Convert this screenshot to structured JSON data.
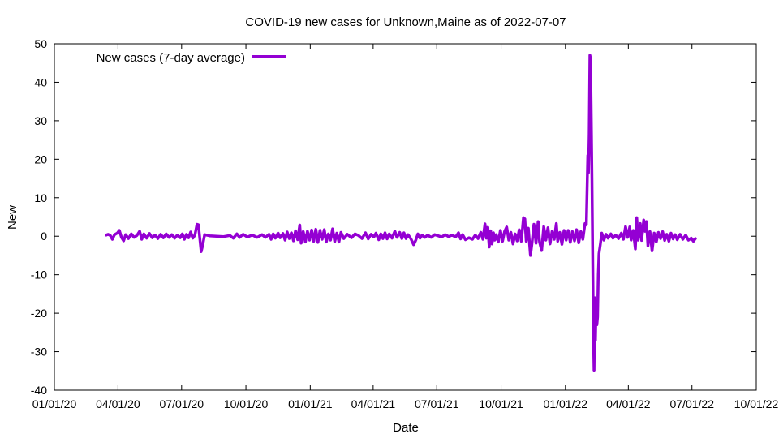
{
  "chart_data": {
    "type": "line",
    "title": "COVID-19 new cases for Unknown,Maine as of 2022-07-07",
    "xlabel": "Date",
    "ylabel": "New",
    "xlim": [
      "2020-01-01",
      "2022-10-01"
    ],
    "ylim": [
      -40,
      50
    ],
    "x_ticks": [
      "01/01/20",
      "04/01/20",
      "07/01/20",
      "10/01/20",
      "01/01/21",
      "04/01/21",
      "07/01/21",
      "10/01/21",
      "01/01/22",
      "04/01/22",
      "07/01/22",
      "10/01/22"
    ],
    "y_ticks": [
      "-40",
      "-30",
      "-20",
      "-10",
      "0",
      "10",
      "20",
      "30",
      "40",
      "50"
    ],
    "grid": false,
    "legend": {
      "position": "top-left"
    },
    "series": [
      {
        "name": "New cases (7-day average)",
        "color": "#9400d3",
        "points": [
          [
            "2020-03-15",
            0.3
          ],
          [
            "2020-03-18",
            0.5
          ],
          [
            "2020-03-21",
            0.2
          ],
          [
            "2020-03-24",
            -0.8
          ],
          [
            "2020-03-27",
            0.4
          ],
          [
            "2020-03-31",
            0.8
          ],
          [
            "2020-04-03",
            1.5
          ],
          [
            "2020-04-06",
            -0.3
          ],
          [
            "2020-04-09",
            -1.2
          ],
          [
            "2020-04-12",
            0.4
          ],
          [
            "2020-04-16",
            -0.6
          ],
          [
            "2020-04-20",
            0.6
          ],
          [
            "2020-04-24",
            -0.3
          ],
          [
            "2020-04-28",
            0.2
          ],
          [
            "2020-05-02",
            1.3
          ],
          [
            "2020-05-05",
            -0.8
          ],
          [
            "2020-05-08",
            0.6
          ],
          [
            "2020-05-12",
            -0.5
          ],
          [
            "2020-05-16",
            0.7
          ],
          [
            "2020-05-20",
            -0.4
          ],
          [
            "2020-05-24",
            0.3
          ],
          [
            "2020-05-28",
            -0.6
          ],
          [
            "2020-06-01",
            0.5
          ],
          [
            "2020-06-05",
            -0.4
          ],
          [
            "2020-06-09",
            0.6
          ],
          [
            "2020-06-13",
            -0.3
          ],
          [
            "2020-06-17",
            0.4
          ],
          [
            "2020-06-21",
            -0.5
          ],
          [
            "2020-06-25",
            0.3
          ],
          [
            "2020-06-29",
            -0.4
          ],
          [
            "2020-07-02",
            0.6
          ],
          [
            "2020-07-05",
            -0.8
          ],
          [
            "2020-07-08",
            0.5
          ],
          [
            "2020-07-11",
            -0.4
          ],
          [
            "2020-07-14",
            1.1
          ],
          [
            "2020-07-17",
            -0.5
          ],
          [
            "2020-07-20",
            0.3
          ],
          [
            "2020-07-23",
            3.1
          ],
          [
            "2020-07-25",
            3.0
          ],
          [
            "2020-07-27",
            -0.5
          ],
          [
            "2020-07-29",
            -4.0
          ],
          [
            "2020-07-31",
            -2.5
          ],
          [
            "2020-08-03",
            0.4
          ],
          [
            "2020-08-10",
            0.1
          ],
          [
            "2020-08-20",
            0.0
          ],
          [
            "2020-08-30",
            -0.1
          ],
          [
            "2020-09-08",
            0.2
          ],
          [
            "2020-09-13",
            -0.5
          ],
          [
            "2020-09-18",
            0.6
          ],
          [
            "2020-09-22",
            -0.3
          ],
          [
            "2020-09-27",
            0.5
          ],
          [
            "2020-10-03",
            -0.2
          ],
          [
            "2020-10-10",
            0.3
          ],
          [
            "2020-10-17",
            -0.3
          ],
          [
            "2020-10-24",
            0.4
          ],
          [
            "2020-10-29",
            -0.3
          ],
          [
            "2020-11-03",
            0.5
          ],
          [
            "2020-11-06",
            -0.8
          ],
          [
            "2020-11-09",
            0.6
          ],
          [
            "2020-11-12",
            -0.5
          ],
          [
            "2020-11-16",
            0.8
          ],
          [
            "2020-11-19",
            -0.4
          ],
          [
            "2020-11-23",
            0.7
          ],
          [
            "2020-11-26",
            -1.0
          ],
          [
            "2020-11-29",
            1.1
          ],
          [
            "2020-12-02",
            -0.6
          ],
          [
            "2020-12-05",
            0.9
          ],
          [
            "2020-12-08",
            -1.2
          ],
          [
            "2020-12-11",
            1.4
          ],
          [
            "2020-12-14",
            -0.9
          ],
          [
            "2020-12-17",
            2.9
          ],
          [
            "2020-12-19",
            -1.8
          ],
          [
            "2020-12-22",
            1.2
          ],
          [
            "2020-12-25",
            -1.5
          ],
          [
            "2020-12-28",
            1.3
          ],
          [
            "2020-12-31",
            -1.0
          ],
          [
            "2021-01-03",
            1.6
          ],
          [
            "2021-01-06",
            -1.3
          ],
          [
            "2021-01-09",
            1.8
          ],
          [
            "2021-01-12",
            -1.6
          ],
          [
            "2021-01-15",
            1.5
          ],
          [
            "2021-01-18",
            -0.8
          ],
          [
            "2021-01-21",
            1.7
          ],
          [
            "2021-01-24",
            -1.5
          ],
          [
            "2021-01-27",
            0.6
          ],
          [
            "2021-01-30",
            -1.0
          ],
          [
            "2021-02-02",
            1.9
          ],
          [
            "2021-02-05",
            -1.4
          ],
          [
            "2021-02-08",
            0.8
          ],
          [
            "2021-02-11",
            -1.5
          ],
          [
            "2021-02-14",
            1.0
          ],
          [
            "2021-02-18",
            -0.6
          ],
          [
            "2021-02-23",
            0.5
          ],
          [
            "2021-03-01",
            -0.4
          ],
          [
            "2021-03-06",
            0.6
          ],
          [
            "2021-03-11",
            0.2
          ],
          [
            "2021-03-16",
            -0.6
          ],
          [
            "2021-03-21",
            0.9
          ],
          [
            "2021-03-25",
            -0.7
          ],
          [
            "2021-03-29",
            0.5
          ],
          [
            "2021-04-02",
            -0.2
          ],
          [
            "2021-04-05",
            0.8
          ],
          [
            "2021-04-09",
            -0.9
          ],
          [
            "2021-04-12",
            0.6
          ],
          [
            "2021-04-15",
            -0.6
          ],
          [
            "2021-04-18",
            0.9
          ],
          [
            "2021-04-21",
            -0.7
          ],
          [
            "2021-04-24",
            0.6
          ],
          [
            "2021-04-28",
            -0.5
          ],
          [
            "2021-05-02",
            1.3
          ],
          [
            "2021-05-05",
            -0.3
          ],
          [
            "2021-05-09",
            1.0
          ],
          [
            "2021-05-12",
            -0.6
          ],
          [
            "2021-05-15",
            0.9
          ],
          [
            "2021-05-18",
            -0.6
          ],
          [
            "2021-05-21",
            0.4
          ],
          [
            "2021-05-25",
            -0.7
          ],
          [
            "2021-05-29",
            -2.2
          ],
          [
            "2021-06-01",
            -1.0
          ],
          [
            "2021-06-04",
            0.6
          ],
          [
            "2021-06-07",
            -0.5
          ],
          [
            "2021-06-10",
            0.3
          ],
          [
            "2021-06-14",
            -0.3
          ],
          [
            "2021-06-18",
            0.3
          ],
          [
            "2021-06-23",
            -0.3
          ],
          [
            "2021-06-28",
            0.4
          ],
          [
            "2021-07-03",
            0.1
          ],
          [
            "2021-07-08",
            -0.2
          ],
          [
            "2021-07-13",
            0.4
          ],
          [
            "2021-07-18",
            -0.1
          ],
          [
            "2021-07-23",
            0.3
          ],
          [
            "2021-07-28",
            -0.2
          ],
          [
            "2021-08-01",
            0.9
          ],
          [
            "2021-08-04",
            -0.7
          ],
          [
            "2021-08-07",
            0.4
          ],
          [
            "2021-08-11",
            -0.9
          ],
          [
            "2021-08-16",
            -0.4
          ],
          [
            "2021-08-21",
            -0.8
          ],
          [
            "2021-08-25",
            0.3
          ],
          [
            "2021-08-29",
            -0.6
          ],
          [
            "2021-09-02",
            1.0
          ],
          [
            "2021-09-05",
            -0.8
          ],
          [
            "2021-09-08",
            3.2
          ],
          [
            "2021-09-10",
            -0.5
          ],
          [
            "2021-09-12",
            2.3
          ],
          [
            "2021-09-14",
            -2.8
          ],
          [
            "2021-09-16",
            1.4
          ],
          [
            "2021-09-18",
            -2.0
          ],
          [
            "2021-09-20",
            0.9
          ],
          [
            "2021-09-22",
            -1.0
          ],
          [
            "2021-09-24",
            0.4
          ],
          [
            "2021-09-27",
            -1.5
          ],
          [
            "2021-09-30",
            1.5
          ],
          [
            "2021-10-03",
            -1.3
          ],
          [
            "2021-10-06",
            1.2
          ],
          [
            "2021-10-09",
            2.4
          ],
          [
            "2021-10-12",
            -1.0
          ],
          [
            "2021-10-15",
            1.0
          ],
          [
            "2021-10-18",
            -2.0
          ],
          [
            "2021-10-21",
            0.6
          ],
          [
            "2021-10-24",
            -1.2
          ],
          [
            "2021-10-27",
            1.7
          ],
          [
            "2021-10-30",
            -1.3
          ],
          [
            "2021-11-02",
            4.8
          ],
          [
            "2021-11-04",
            4.5
          ],
          [
            "2021-11-06",
            -1.3
          ],
          [
            "2021-11-09",
            2.1
          ],
          [
            "2021-11-12",
            -5.0
          ],
          [
            "2021-11-14",
            -2.2
          ],
          [
            "2021-11-17",
            3.1
          ],
          [
            "2021-11-20",
            -1.8
          ],
          [
            "2021-11-23",
            3.8
          ],
          [
            "2021-11-25",
            -1.5
          ],
          [
            "2021-11-28",
            -3.7
          ],
          [
            "2021-12-01",
            2.5
          ],
          [
            "2021-12-04",
            -1.0
          ],
          [
            "2021-12-07",
            2.2
          ],
          [
            "2021-12-10",
            -2.0
          ],
          [
            "2021-12-13",
            1.3
          ],
          [
            "2021-12-16",
            -0.8
          ],
          [
            "2021-12-19",
            3.3
          ],
          [
            "2021-12-21",
            -1.3
          ],
          [
            "2021-12-24",
            1.0
          ],
          [
            "2021-12-27",
            -2.1
          ],
          [
            "2021-12-30",
            1.5
          ],
          [
            "2022-01-02",
            -1.0
          ],
          [
            "2022-01-05",
            1.5
          ],
          [
            "2022-01-08",
            -1.6
          ],
          [
            "2022-01-11",
            1.2
          ],
          [
            "2022-01-14",
            -1.2
          ],
          [
            "2022-01-17",
            1.7
          ],
          [
            "2022-01-20",
            -1.7
          ],
          [
            "2022-01-23",
            1.2
          ],
          [
            "2022-01-26",
            -0.8
          ],
          [
            "2022-01-29",
            3.3
          ],
          [
            "2022-01-31",
            3.0
          ],
          [
            "2022-02-02",
            21.0
          ],
          [
            "2022-02-03",
            16.5
          ],
          [
            "2022-02-04",
            26.5
          ],
          [
            "2022-02-05",
            47.0
          ],
          [
            "2022-02-06",
            46.0
          ],
          [
            "2022-02-08",
            15.0
          ],
          [
            "2022-02-09",
            -5.0
          ],
          [
            "2022-02-10",
            -25.0
          ],
          [
            "2022-02-11",
            -35.0
          ],
          [
            "2022-02-12",
            -16.0
          ],
          [
            "2022-02-13",
            -27.0
          ],
          [
            "2022-02-14",
            -17.0
          ],
          [
            "2022-02-15",
            -23.0
          ],
          [
            "2022-02-16",
            -21.0
          ],
          [
            "2022-02-17",
            -10.0
          ],
          [
            "2022-02-18",
            -4.5
          ],
          [
            "2022-02-20",
            -2.0
          ],
          [
            "2022-02-22",
            0.8
          ],
          [
            "2022-02-25",
            -1.0
          ],
          [
            "2022-02-28",
            0.5
          ],
          [
            "2022-03-03",
            -0.5
          ],
          [
            "2022-03-07",
            0.6
          ],
          [
            "2022-03-10",
            -0.5
          ],
          [
            "2022-03-14",
            0.3
          ],
          [
            "2022-03-18",
            -0.6
          ],
          [
            "2022-03-22",
            0.8
          ],
          [
            "2022-03-25",
            -0.8
          ],
          [
            "2022-03-28",
            2.5
          ],
          [
            "2022-03-31",
            -0.3
          ],
          [
            "2022-04-03",
            2.4
          ],
          [
            "2022-04-05",
            -1.0
          ],
          [
            "2022-04-08",
            1.5
          ],
          [
            "2022-04-11",
            -3.3
          ],
          [
            "2022-04-13",
            4.8
          ],
          [
            "2022-04-15",
            -1.0
          ],
          [
            "2022-04-18",
            3.3
          ],
          [
            "2022-04-20",
            -1.1
          ],
          [
            "2022-04-23",
            4.2
          ],
          [
            "2022-04-25",
            1.3
          ],
          [
            "2022-04-27",
            3.8
          ],
          [
            "2022-04-29",
            -2.5
          ],
          [
            "2022-05-02",
            1.2
          ],
          [
            "2022-05-05",
            -3.8
          ],
          [
            "2022-05-08",
            0.8
          ],
          [
            "2022-05-11",
            -1.5
          ],
          [
            "2022-05-14",
            1.0
          ],
          [
            "2022-05-17",
            -0.6
          ],
          [
            "2022-05-20",
            1.2
          ],
          [
            "2022-05-23",
            -1.1
          ],
          [
            "2022-05-26",
            0.5
          ],
          [
            "2022-05-29",
            -1.3
          ],
          [
            "2022-06-01",
            0.8
          ],
          [
            "2022-06-04",
            -0.7
          ],
          [
            "2022-06-07",
            0.4
          ],
          [
            "2022-06-10",
            -0.9
          ],
          [
            "2022-06-14",
            0.5
          ],
          [
            "2022-06-18",
            -0.8
          ],
          [
            "2022-06-22",
            0.3
          ],
          [
            "2022-06-26",
            -1.0
          ],
          [
            "2022-06-30",
            -0.5
          ],
          [
            "2022-07-03",
            -1.3
          ],
          [
            "2022-07-06",
            -0.6
          ]
        ]
      }
    ]
  }
}
